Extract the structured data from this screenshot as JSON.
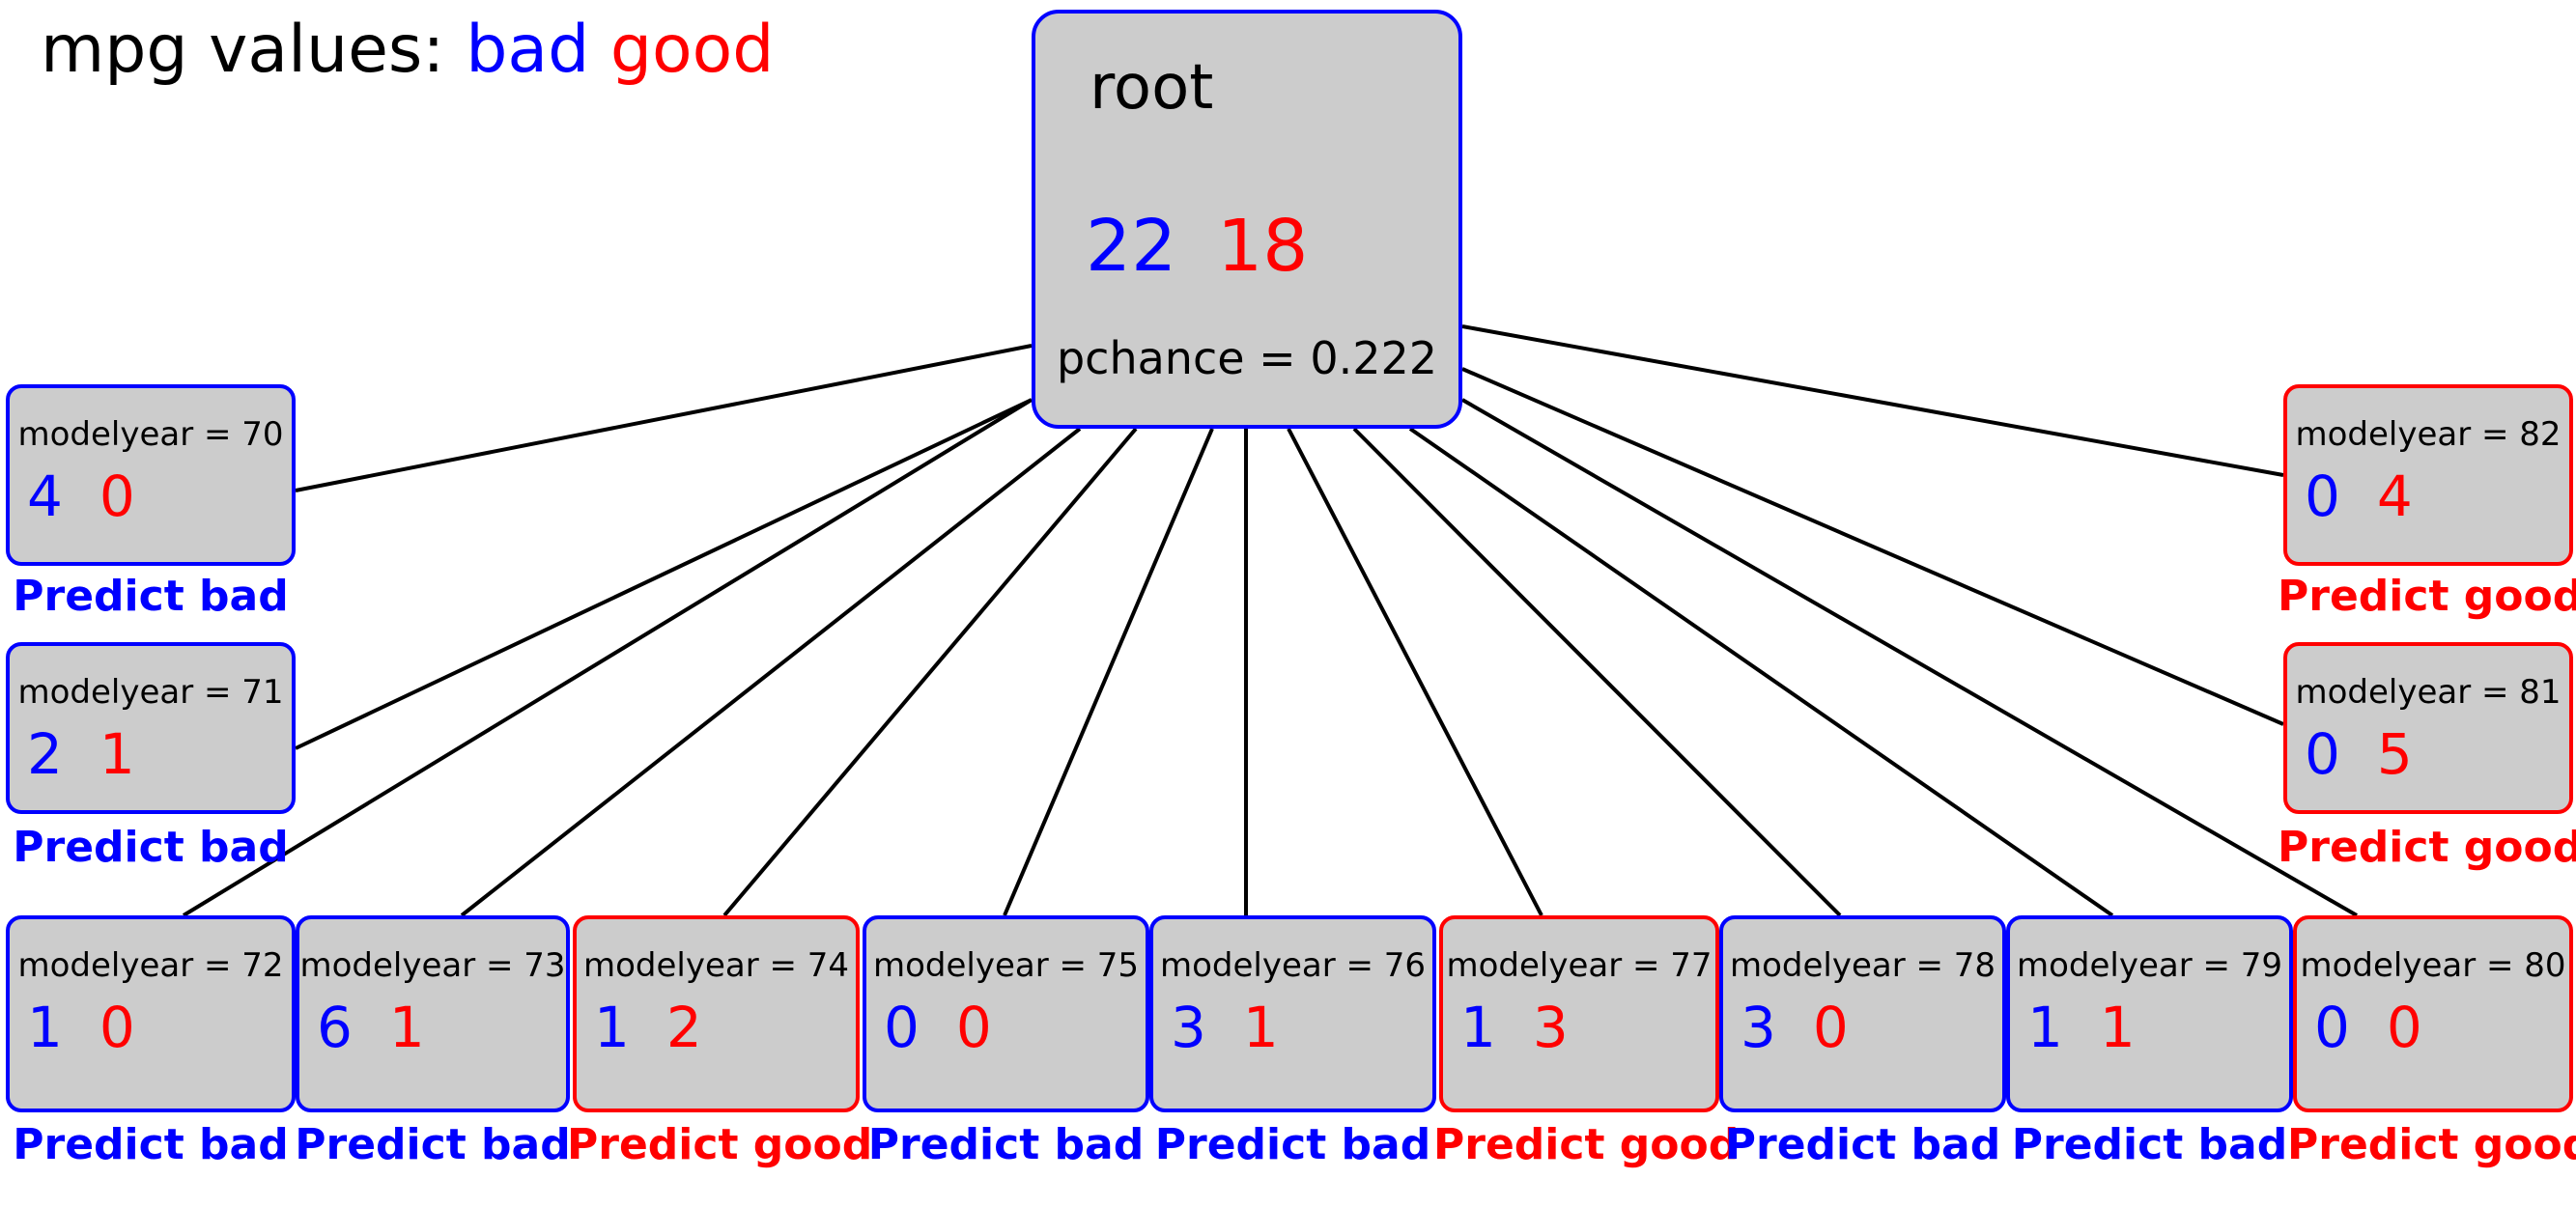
{
  "legend": {
    "title": "mpg values:",
    "bad": "bad",
    "good": "good"
  },
  "colors": {
    "bad": "#0000ff",
    "good": "#ff0000",
    "node_fill": "#cccccc",
    "edge": "#000000"
  },
  "root": {
    "label": "root",
    "bad_count": "22",
    "good_count": "18",
    "pchance": "pchance = 0.222"
  },
  "children": [
    {
      "label": "modelyear = 70",
      "bad_count": "4",
      "good_count": "0",
      "prediction": "Predict bad",
      "class": "bad"
    },
    {
      "label": "modelyear = 71",
      "bad_count": "2",
      "good_count": "1",
      "prediction": "Predict bad",
      "class": "bad"
    },
    {
      "label": "modelyear = 72",
      "bad_count": "1",
      "good_count": "0",
      "prediction": "Predict bad",
      "class": "bad"
    },
    {
      "label": "modelyear = 73",
      "bad_count": "6",
      "good_count": "1",
      "prediction": "Predict bad",
      "class": "bad"
    },
    {
      "label": "modelyear = 74",
      "bad_count": "1",
      "good_count": "2",
      "prediction": "Predict good",
      "class": "good"
    },
    {
      "label": "modelyear = 75",
      "bad_count": "0",
      "good_count": "0",
      "prediction": "Predict bad",
      "class": "bad"
    },
    {
      "label": "modelyear = 76",
      "bad_count": "3",
      "good_count": "1",
      "prediction": "Predict bad",
      "class": "bad"
    },
    {
      "label": "modelyear = 77",
      "bad_count": "1",
      "good_count": "3",
      "prediction": "Predict good",
      "class": "good"
    },
    {
      "label": "modelyear = 78",
      "bad_count": "3",
      "good_count": "0",
      "prediction": "Predict bad",
      "class": "bad"
    },
    {
      "label": "modelyear = 79",
      "bad_count": "1",
      "good_count": "1",
      "prediction": "Predict bad",
      "class": "bad"
    },
    {
      "label": "modelyear = 80",
      "bad_count": "0",
      "good_count": "0",
      "prediction": "Predict good",
      "class": "good"
    },
    {
      "label": "modelyear = 81",
      "bad_count": "0",
      "good_count": "5",
      "prediction": "Predict good",
      "class": "good"
    },
    {
      "label": "modelyear = 82",
      "bad_count": "0",
      "good_count": "4",
      "prediction": "Predict good",
      "class": "good"
    }
  ]
}
